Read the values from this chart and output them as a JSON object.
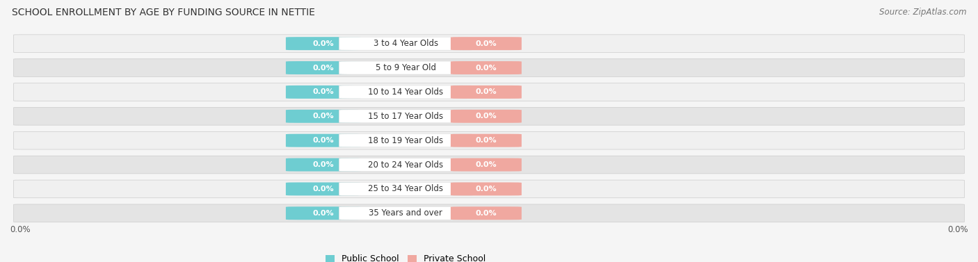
{
  "title": "SCHOOL ENROLLMENT BY AGE BY FUNDING SOURCE IN NETTIE",
  "source": "Source: ZipAtlas.com",
  "categories": [
    "3 to 4 Year Olds",
    "5 to 9 Year Old",
    "10 to 14 Year Olds",
    "15 to 17 Year Olds",
    "18 to 19 Year Olds",
    "20 to 24 Year Olds",
    "25 to 34 Year Olds",
    "35 Years and over"
  ],
  "public_values": [
    0.0,
    0.0,
    0.0,
    0.0,
    0.0,
    0.0,
    0.0,
    0.0
  ],
  "private_values": [
    0.0,
    0.0,
    0.0,
    0.0,
    0.0,
    0.0,
    0.0,
    0.0
  ],
  "public_color": "#6ecdd1",
  "private_color": "#f0a8a0",
  "row_color_light": "#f0f0f0",
  "row_color_dark": "#e4e4e4",
  "row_bg_outer": "#dcdcdc",
  "title_fontsize": 10,
  "source_fontsize": 8.5,
  "label_fontsize": 8.5,
  "value_fontsize": 8,
  "legend_fontsize": 9,
  "axis_label_left": "0.0%",
  "axis_label_right": "0.0%",
  "background_color": "#f5f5f5"
}
